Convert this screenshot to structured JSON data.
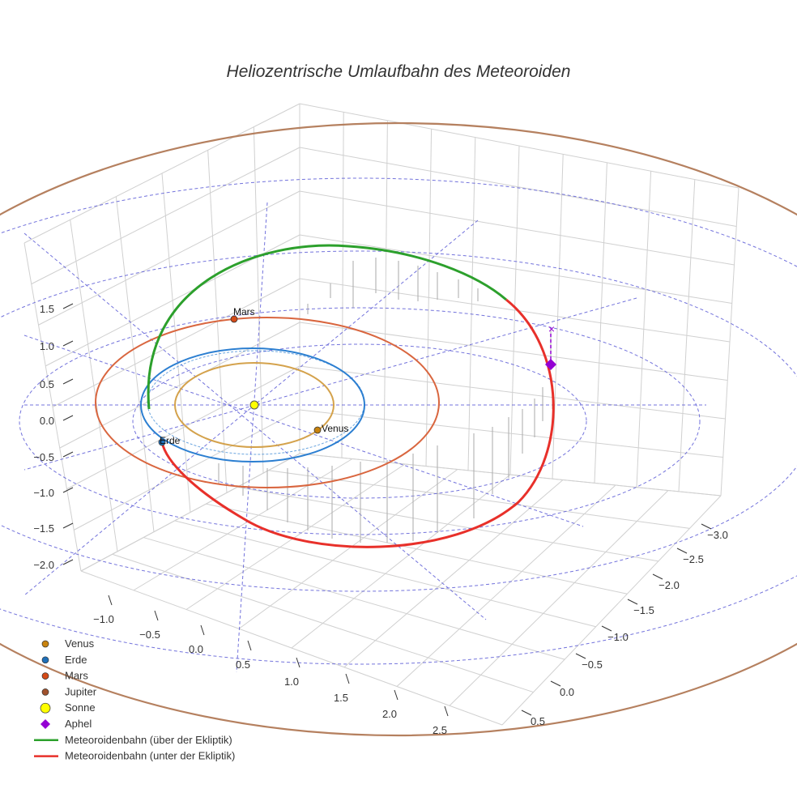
{
  "chart_data": {
    "type": "scatter3d",
    "title": "Heliozentrische Umlaufbahn des Meteoroiden",
    "x_ticks": [
      "−1.0",
      "−0.5",
      "0.0",
      "0.5",
      "1.0",
      "1.5",
      "2.0",
      "2.5"
    ],
    "y_ticks": [
      "−3.0",
      "−2.5",
      "−2.0",
      "−1.5",
      "−1.0",
      "−0.5",
      "0.0",
      "0.5"
    ],
    "z_ticks": [
      "1.5",
      "1.0",
      "0.5",
      "0.0",
      "−0.5",
      "−1.0",
      "−1.5",
      "−2.0"
    ],
    "grid": true,
    "legend_position": "bottom-left",
    "planets": [
      {
        "name": "Venus",
        "label": "Venus",
        "color": "#d4a24c",
        "marker_color": "#c8830e",
        "orbit_radius": 0.72
      },
      {
        "name": "Erde",
        "label": "Erde",
        "color": "#2c7fd1",
        "marker_color": "#1f6fb8",
        "orbit_radius": 1.0
      },
      {
        "name": "Mars",
        "label": "Mars",
        "color": "#d9663f",
        "marker_color": "#d54a17",
        "orbit_radius": 1.52
      },
      {
        "name": "Jupiter",
        "label": "",
        "color": "#b5805f",
        "marker_color": "#a0522d",
        "orbit_radius": 5.2
      }
    ],
    "sun": {
      "name": "Sonne",
      "x": 0,
      "y": 0,
      "z": 0,
      "color": "#ffff00"
    },
    "aphelion": {
      "name": "Aphel",
      "color": "#9400d3",
      "projection_marker": "×"
    },
    "series": [
      {
        "name": "Meteoroidenbahn (über der Ekliptik)",
        "color": "#2ca02c"
      },
      {
        "name": "Meteoroidenbahn (unter der Ekliptik)",
        "color": "#e8302a"
      }
    ],
    "reference_grid_color": "#5b5bd6"
  },
  "legend": {
    "items": [
      {
        "label": "Venus",
        "marker": "circle",
        "color": "#c8830e"
      },
      {
        "label": "Erde",
        "marker": "circle",
        "color": "#1f6fb8"
      },
      {
        "label": "Mars",
        "marker": "circle",
        "color": "#d54a17"
      },
      {
        "label": "Jupiter",
        "marker": "circle",
        "color": "#a0522d"
      },
      {
        "label": "Sonne",
        "marker": "circle-large",
        "color": "#ffff00"
      },
      {
        "label": "Aphel",
        "marker": "diamond",
        "color": "#9400d3"
      },
      {
        "label": "Meteoroidenbahn (über der Ekliptik)",
        "marker": "line",
        "color": "#2ca02c"
      },
      {
        "label": "Meteoroidenbahn (unter der Ekliptik)",
        "marker": "line",
        "color": "#e8302a"
      }
    ]
  }
}
